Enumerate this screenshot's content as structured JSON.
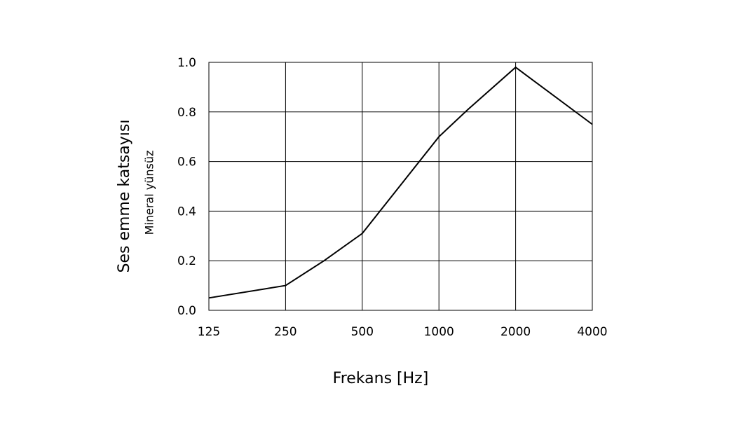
{
  "chart_data": {
    "type": "line",
    "x_label": "Frekans [Hz]",
    "y_label": "Ses emme katsayısı",
    "subtitle": "Mineral yünsüz",
    "x": [
      125,
      250,
      354,
      500,
      1000,
      1300,
      2000,
      4000
    ],
    "series": [
      {
        "name": "Mineral yünsüz",
        "color": "#000000",
        "values": [
          0.05,
          0.1,
          0.2,
          0.31,
          0.7,
          0.81,
          0.98,
          0.75
        ]
      }
    ],
    "xlim": [
      125,
      4000
    ],
    "xticks": [
      125,
      250,
      500,
      1000,
      2000,
      4000
    ],
    "xscale": "log",
    "ylim": [
      0,
      1
    ],
    "yticks": [
      {
        "value": 0,
        "label": "0.0"
      },
      0.2,
      0.4,
      0.6,
      0.8,
      {
        "value": 1,
        "label": "1.0"
      }
    ],
    "grid": true
  }
}
